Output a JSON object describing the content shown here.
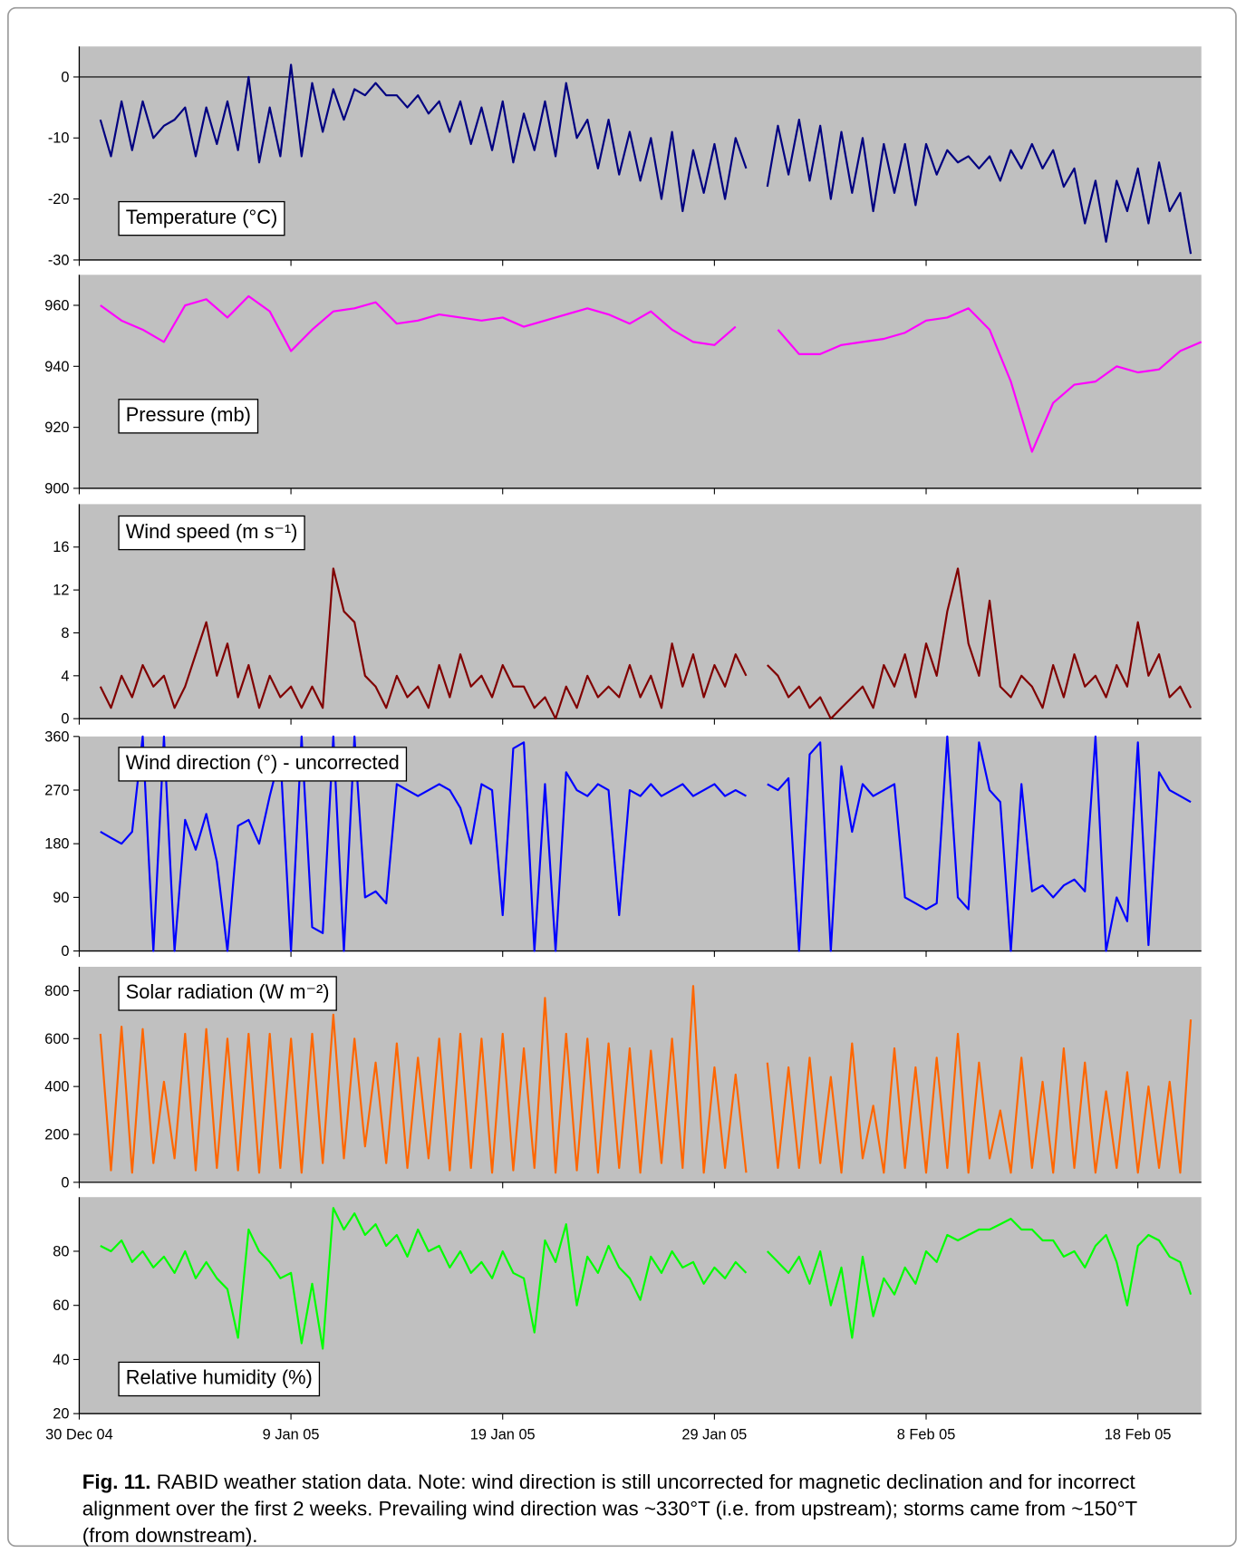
{
  "chart_data": [
    {
      "type": "line",
      "title": "Temperature (°C)",
      "color": "#000080",
      "zero_line": true,
      "xlim": [
        0,
        53
      ],
      "ylim": [
        -30,
        5
      ],
      "yticks": [
        -30,
        -20,
        -10,
        0
      ],
      "x": [
        1,
        1.5,
        2,
        2.5,
        3,
        3.5,
        4,
        4.5,
        5,
        5.5,
        6,
        6.5,
        7,
        7.5,
        8,
        8.5,
        9,
        9.5,
        10,
        10.5,
        11,
        11.5,
        12,
        12.5,
        13,
        13.5,
        14,
        14.5,
        15,
        15.5,
        16,
        16.5,
        17,
        17.5,
        18,
        18.5,
        19,
        19.5,
        20,
        20.5,
        21,
        21.5,
        22,
        22.5,
        23,
        23.5,
        24,
        24.5,
        25,
        25.5,
        26,
        26.5,
        27,
        27.5,
        28,
        28.5,
        29,
        29.5,
        30,
        30.5,
        31,
        31.5,
        32,
        32.5,
        33,
        33.5,
        34,
        34.5,
        35,
        35.5,
        36,
        36.5,
        37,
        37.5,
        38,
        38.5,
        39,
        39.5,
        40,
        40.5,
        41,
        41.5,
        42,
        42.5,
        43,
        43.5,
        44,
        44.5,
        45,
        45.5,
        46,
        46.5,
        47,
        47.5,
        48,
        48.5,
        49,
        49.5,
        50,
        50.5,
        51,
        51.5,
        52,
        52.5
      ],
      "values": [
        -7,
        -13,
        -4,
        -12,
        -4,
        -10,
        -8,
        -7,
        -5,
        -13,
        -5,
        -11,
        -4,
        -12,
        0,
        -14,
        -5,
        -13,
        2,
        -13,
        -1,
        -9,
        -2,
        -7,
        -2,
        -3,
        -1,
        -3,
        -3,
        -5,
        -3,
        -6,
        -4,
        -9,
        -4,
        -11,
        -5,
        -12,
        -4,
        -14,
        -6,
        -12,
        -4,
        -13,
        -1,
        -10,
        -7,
        -15,
        -7,
        -16,
        -9,
        -17,
        -10,
        -20,
        -9,
        -22,
        -12,
        -19,
        -11,
        -20,
        -10,
        -15,
        null,
        -18,
        -8,
        -16,
        -7,
        -17,
        -8,
        -20,
        -9,
        -19,
        -10,
        -22,
        -11,
        -19,
        -11,
        -21,
        -11,
        -16,
        -12,
        -14,
        -13,
        -15,
        -13,
        -17,
        -12,
        -15,
        -11,
        -15,
        -12,
        -18,
        -15,
        -24,
        -17,
        -27,
        -17,
        -22,
        -15,
        -24,
        -14,
        -22,
        -19,
        -29
      ]
    },
    {
      "type": "line",
      "title": "Pressure (mb)",
      "color": "#ff00ff",
      "xlim": [
        0,
        53
      ],
      "ylim": [
        900,
        970
      ],
      "yticks": [
        900,
        920,
        940,
        960
      ],
      "x": [
        1,
        2,
        3,
        4,
        5,
        6,
        7,
        8,
        9,
        10,
        11,
        12,
        13,
        14,
        15,
        16,
        17,
        18,
        19,
        20,
        21,
        22,
        23,
        24,
        25,
        26,
        27,
        28,
        29,
        30,
        31,
        32,
        33,
        34,
        35,
        36,
        37,
        38,
        39,
        40,
        41,
        42,
        43,
        44,
        45,
        46,
        47,
        48,
        49,
        50,
        51,
        52,
        53
      ],
      "values": [
        960,
        955,
        952,
        948,
        960,
        962,
        956,
        963,
        958,
        945,
        952,
        958,
        959,
        961,
        954,
        955,
        957,
        956,
        955,
        956,
        953,
        955,
        957,
        959,
        957,
        954,
        958,
        952,
        948,
        947,
        953,
        null,
        952,
        944,
        944,
        947,
        948,
        949,
        951,
        955,
        956,
        959,
        952,
        935,
        912,
        928,
        934,
        935,
        940,
        938,
        939,
        945,
        948
      ]
    },
    {
      "type": "line",
      "title": "Wind speed (m s⁻¹)",
      "color": "#800000",
      "xlim": [
        0,
        53
      ],
      "ylim": [
        0,
        20
      ],
      "yticks": [
        0,
        4,
        8,
        12,
        16
      ],
      "x": [
        1,
        1.5,
        2,
        2.5,
        3,
        3.5,
        4,
        4.5,
        5,
        5.5,
        6,
        6.5,
        7,
        7.5,
        8,
        8.5,
        9,
        9.5,
        10,
        10.5,
        11,
        11.5,
        12,
        12.5,
        13,
        13.5,
        14,
        14.5,
        15,
        15.5,
        16,
        16.5,
        17,
        17.5,
        18,
        18.5,
        19,
        19.5,
        20,
        20.5,
        21,
        21.5,
        22,
        22.5,
        23,
        23.5,
        24,
        24.5,
        25,
        25.5,
        26,
        26.5,
        27,
        27.5,
        28,
        28.5,
        29,
        29.5,
        30,
        30.5,
        31,
        31.5,
        32,
        32.5,
        33,
        33.5,
        34,
        34.5,
        35,
        35.5,
        36,
        36.5,
        37,
        37.5,
        38,
        38.5,
        39,
        39.5,
        40,
        40.5,
        41,
        41.5,
        42,
        42.5,
        43,
        43.5,
        44,
        44.5,
        45,
        45.5,
        46,
        46.5,
        47,
        47.5,
        48,
        48.5,
        49,
        49.5,
        50,
        50.5,
        51,
        51.5,
        52,
        52.5
      ],
      "values": [
        3,
        1,
        4,
        2,
        5,
        3,
        4,
        1,
        3,
        6,
        9,
        4,
        7,
        2,
        5,
        1,
        4,
        2,
        3,
        1,
        3,
        1,
        14,
        10,
        9,
        4,
        3,
        1,
        4,
        2,
        3,
        1,
        5,
        2,
        6,
        3,
        4,
        2,
        5,
        3,
        3,
        1,
        2,
        0,
        3,
        1,
        4,
        2,
        3,
        2,
        5,
        2,
        4,
        1,
        7,
        3,
        6,
        2,
        5,
        3,
        6,
        4,
        null,
        5,
        4,
        2,
        3,
        1,
        2,
        0,
        1,
        2,
        3,
        1,
        5,
        3,
        6,
        2,
        7,
        4,
        10,
        14,
        7,
        4,
        11,
        3,
        2,
        4,
        3,
        1,
        5,
        2,
        6,
        3,
        4,
        2,
        5,
        3,
        9,
        4,
        6,
        2,
        3,
        1
      ]
    },
    {
      "type": "line",
      "title": "Wind direction (°) - uncorrected",
      "color": "#0000ff",
      "xlim": [
        0,
        53
      ],
      "ylim": [
        0,
        360
      ],
      "yticks": [
        0,
        90,
        180,
        270,
        360
      ],
      "x": [
        1,
        1.5,
        2,
        2.5,
        3,
        3.5,
        4,
        4.5,
        5,
        5.5,
        6,
        6.5,
        7,
        7.5,
        8,
        8.5,
        9,
        9.5,
        10,
        10.5,
        11,
        11.5,
        12,
        12.5,
        13,
        13.5,
        14,
        14.5,
        15,
        15.5,
        16,
        16.5,
        17,
        17.5,
        18,
        18.5,
        19,
        19.5,
        20,
        20.5,
        21,
        21.5,
        22,
        22.5,
        23,
        23.5,
        24,
        24.5,
        25,
        25.5,
        26,
        26.5,
        27,
        27.5,
        28,
        28.5,
        29,
        29.5,
        30,
        30.5,
        31,
        31.5,
        32,
        32.5,
        33,
        33.5,
        34,
        34.5,
        35,
        35.5,
        36,
        36.5,
        37,
        37.5,
        38,
        38.5,
        39,
        39.5,
        40,
        40.5,
        41,
        41.5,
        42,
        42.5,
        43,
        43.5,
        44,
        44.5,
        45,
        45.5,
        46,
        46.5,
        47,
        47.5,
        48,
        48.5,
        49,
        49.5,
        50,
        50.5,
        51,
        51.5,
        52,
        52.5
      ],
      "values": [
        200,
        190,
        180,
        200,
        360,
        0,
        360,
        0,
        220,
        170,
        230,
        150,
        0,
        210,
        220,
        180,
        260,
        330,
        0,
        360,
        40,
        30,
        360,
        0,
        360,
        90,
        100,
        80,
        280,
        270,
        260,
        270,
        280,
        270,
        240,
        180,
        280,
        270,
        60,
        340,
        350,
        0,
        280,
        0,
        300,
        270,
        260,
        280,
        270,
        60,
        270,
        260,
        280,
        260,
        270,
        280,
        260,
        270,
        280,
        260,
        270,
        260,
        null,
        280,
        270,
        290,
        0,
        330,
        350,
        0,
        310,
        200,
        280,
        260,
        270,
        280,
        90,
        80,
        70,
        80,
        360,
        90,
        70,
        350,
        270,
        250,
        0,
        280,
        100,
        110,
        90,
        110,
        120,
        100,
        360,
        0,
        90,
        50,
        350,
        10,
        300,
        270,
        260,
        250
      ]
    },
    {
      "type": "line",
      "title": "Solar radiation (W m⁻²)",
      "color": "#ff6600",
      "xlim": [
        0,
        53
      ],
      "ylim": [
        0,
        900
      ],
      "yticks": [
        0,
        200,
        400,
        600,
        800
      ],
      "x": [
        1,
        1.5,
        2,
        2.5,
        3,
        3.5,
        4,
        4.5,
        5,
        5.5,
        6,
        6.5,
        7,
        7.5,
        8,
        8.5,
        9,
        9.5,
        10,
        10.5,
        11,
        11.5,
        12,
        12.5,
        13,
        13.5,
        14,
        14.5,
        15,
        15.5,
        16,
        16.5,
        17,
        17.5,
        18,
        18.5,
        19,
        19.5,
        20,
        20.5,
        21,
        21.5,
        22,
        22.5,
        23,
        23.5,
        24,
        24.5,
        25,
        25.5,
        26,
        26.5,
        27,
        27.5,
        28,
        28.5,
        29,
        29.5,
        30,
        30.5,
        31,
        31.5,
        32,
        32.5,
        33,
        33.5,
        34,
        34.5,
        35,
        35.5,
        36,
        36.5,
        37,
        37.5,
        38,
        38.5,
        39,
        39.5,
        40,
        40.5,
        41,
        41.5,
        42,
        42.5,
        43,
        43.5,
        44,
        44.5,
        45,
        45.5,
        46,
        46.5,
        47,
        47.5,
        48,
        48.5,
        49,
        49.5,
        50,
        50.5,
        51,
        51.5,
        52,
        52.5
      ],
      "values": [
        620,
        50,
        650,
        40,
        640,
        80,
        420,
        100,
        620,
        50,
        640,
        60,
        600,
        50,
        620,
        40,
        620,
        60,
        600,
        40,
        620,
        80,
        700,
        100,
        600,
        150,
        500,
        80,
        580,
        60,
        520,
        100,
        600,
        50,
        620,
        60,
        600,
        40,
        620,
        50,
        560,
        60,
        770,
        40,
        620,
        50,
        600,
        40,
        580,
        60,
        560,
        40,
        550,
        80,
        600,
        60,
        820,
        40,
        480,
        60,
        450,
        40,
        null,
        500,
        60,
        480,
        60,
        520,
        80,
        440,
        40,
        580,
        100,
        320,
        40,
        560,
        60,
        480,
        40,
        520,
        60,
        620,
        40,
        500,
        100,
        300,
        40,
        520,
        60,
        420,
        40,
        560,
        60,
        500,
        40,
        380,
        60,
        460,
        40,
        400,
        60,
        420,
        40,
        680
      ]
    },
    {
      "type": "line",
      "title": "Relative humidity (%)",
      "color": "#00ff00",
      "xlim": [
        0,
        53
      ],
      "ylim": [
        20,
        100
      ],
      "yticks": [
        20,
        40,
        60,
        80
      ],
      "xticks": [
        {
          "value": 0,
          "label": "30 Dec 04"
        },
        {
          "value": 10,
          "label": "9 Jan 05"
        },
        {
          "value": 20,
          "label": "19 Jan 05"
        },
        {
          "value": 30,
          "label": "29 Jan 05"
        },
        {
          "value": 40,
          "label": "8 Feb 05"
        },
        {
          "value": 50,
          "label": "18 Feb 05"
        }
      ],
      "x": [
        1,
        1.5,
        2,
        2.5,
        3,
        3.5,
        4,
        4.5,
        5,
        5.5,
        6,
        6.5,
        7,
        7.5,
        8,
        8.5,
        9,
        9.5,
        10,
        10.5,
        11,
        11.5,
        12,
        12.5,
        13,
        13.5,
        14,
        14.5,
        15,
        15.5,
        16,
        16.5,
        17,
        17.5,
        18,
        18.5,
        19,
        19.5,
        20,
        20.5,
        21,
        21.5,
        22,
        22.5,
        23,
        23.5,
        24,
        24.5,
        25,
        25.5,
        26,
        26.5,
        27,
        27.5,
        28,
        28.5,
        29,
        29.5,
        30,
        30.5,
        31,
        31.5,
        32,
        32.5,
        33,
        33.5,
        34,
        34.5,
        35,
        35.5,
        36,
        36.5,
        37,
        37.5,
        38,
        38.5,
        39,
        39.5,
        40,
        40.5,
        41,
        41.5,
        42,
        42.5,
        43,
        43.5,
        44,
        44.5,
        45,
        45.5,
        46,
        46.5,
        47,
        47.5,
        48,
        48.5,
        49,
        49.5,
        50,
        50.5,
        51,
        51.5,
        52,
        52.5
      ],
      "values": [
        82,
        80,
        84,
        76,
        80,
        74,
        78,
        72,
        80,
        70,
        76,
        70,
        66,
        48,
        88,
        80,
        76,
        70,
        72,
        46,
        68,
        44,
        96,
        88,
        94,
        86,
        90,
        82,
        86,
        78,
        88,
        80,
        82,
        74,
        80,
        72,
        76,
        70,
        80,
        72,
        70,
        50,
        84,
        76,
        90,
        60,
        78,
        72,
        82,
        74,
        70,
        62,
        78,
        72,
        80,
        74,
        76,
        68,
        74,
        70,
        76,
        72,
        null,
        80,
        76,
        72,
        78,
        68,
        80,
        60,
        74,
        48,
        78,
        56,
        70,
        64,
        74,
        68,
        80,
        76,
        86,
        84,
        86,
        88,
        88,
        90,
        92,
        88,
        88,
        84,
        84,
        78,
        80,
        74,
        82,
        86,
        76,
        60,
        82,
        86,
        84,
        78,
        76,
        64
      ]
    }
  ],
  "caption": {
    "label": "Fig. 11.",
    "lines": [
      " RABID weather station data. Note: wind direction is still uncorrected for magnetic declination and for incorrect",
      "alignment over the first 2 weeks. Prevailing wind direction was ~330°T (i.e. from upstream); storms came from ~150°T",
      "(from downstream)."
    ]
  }
}
